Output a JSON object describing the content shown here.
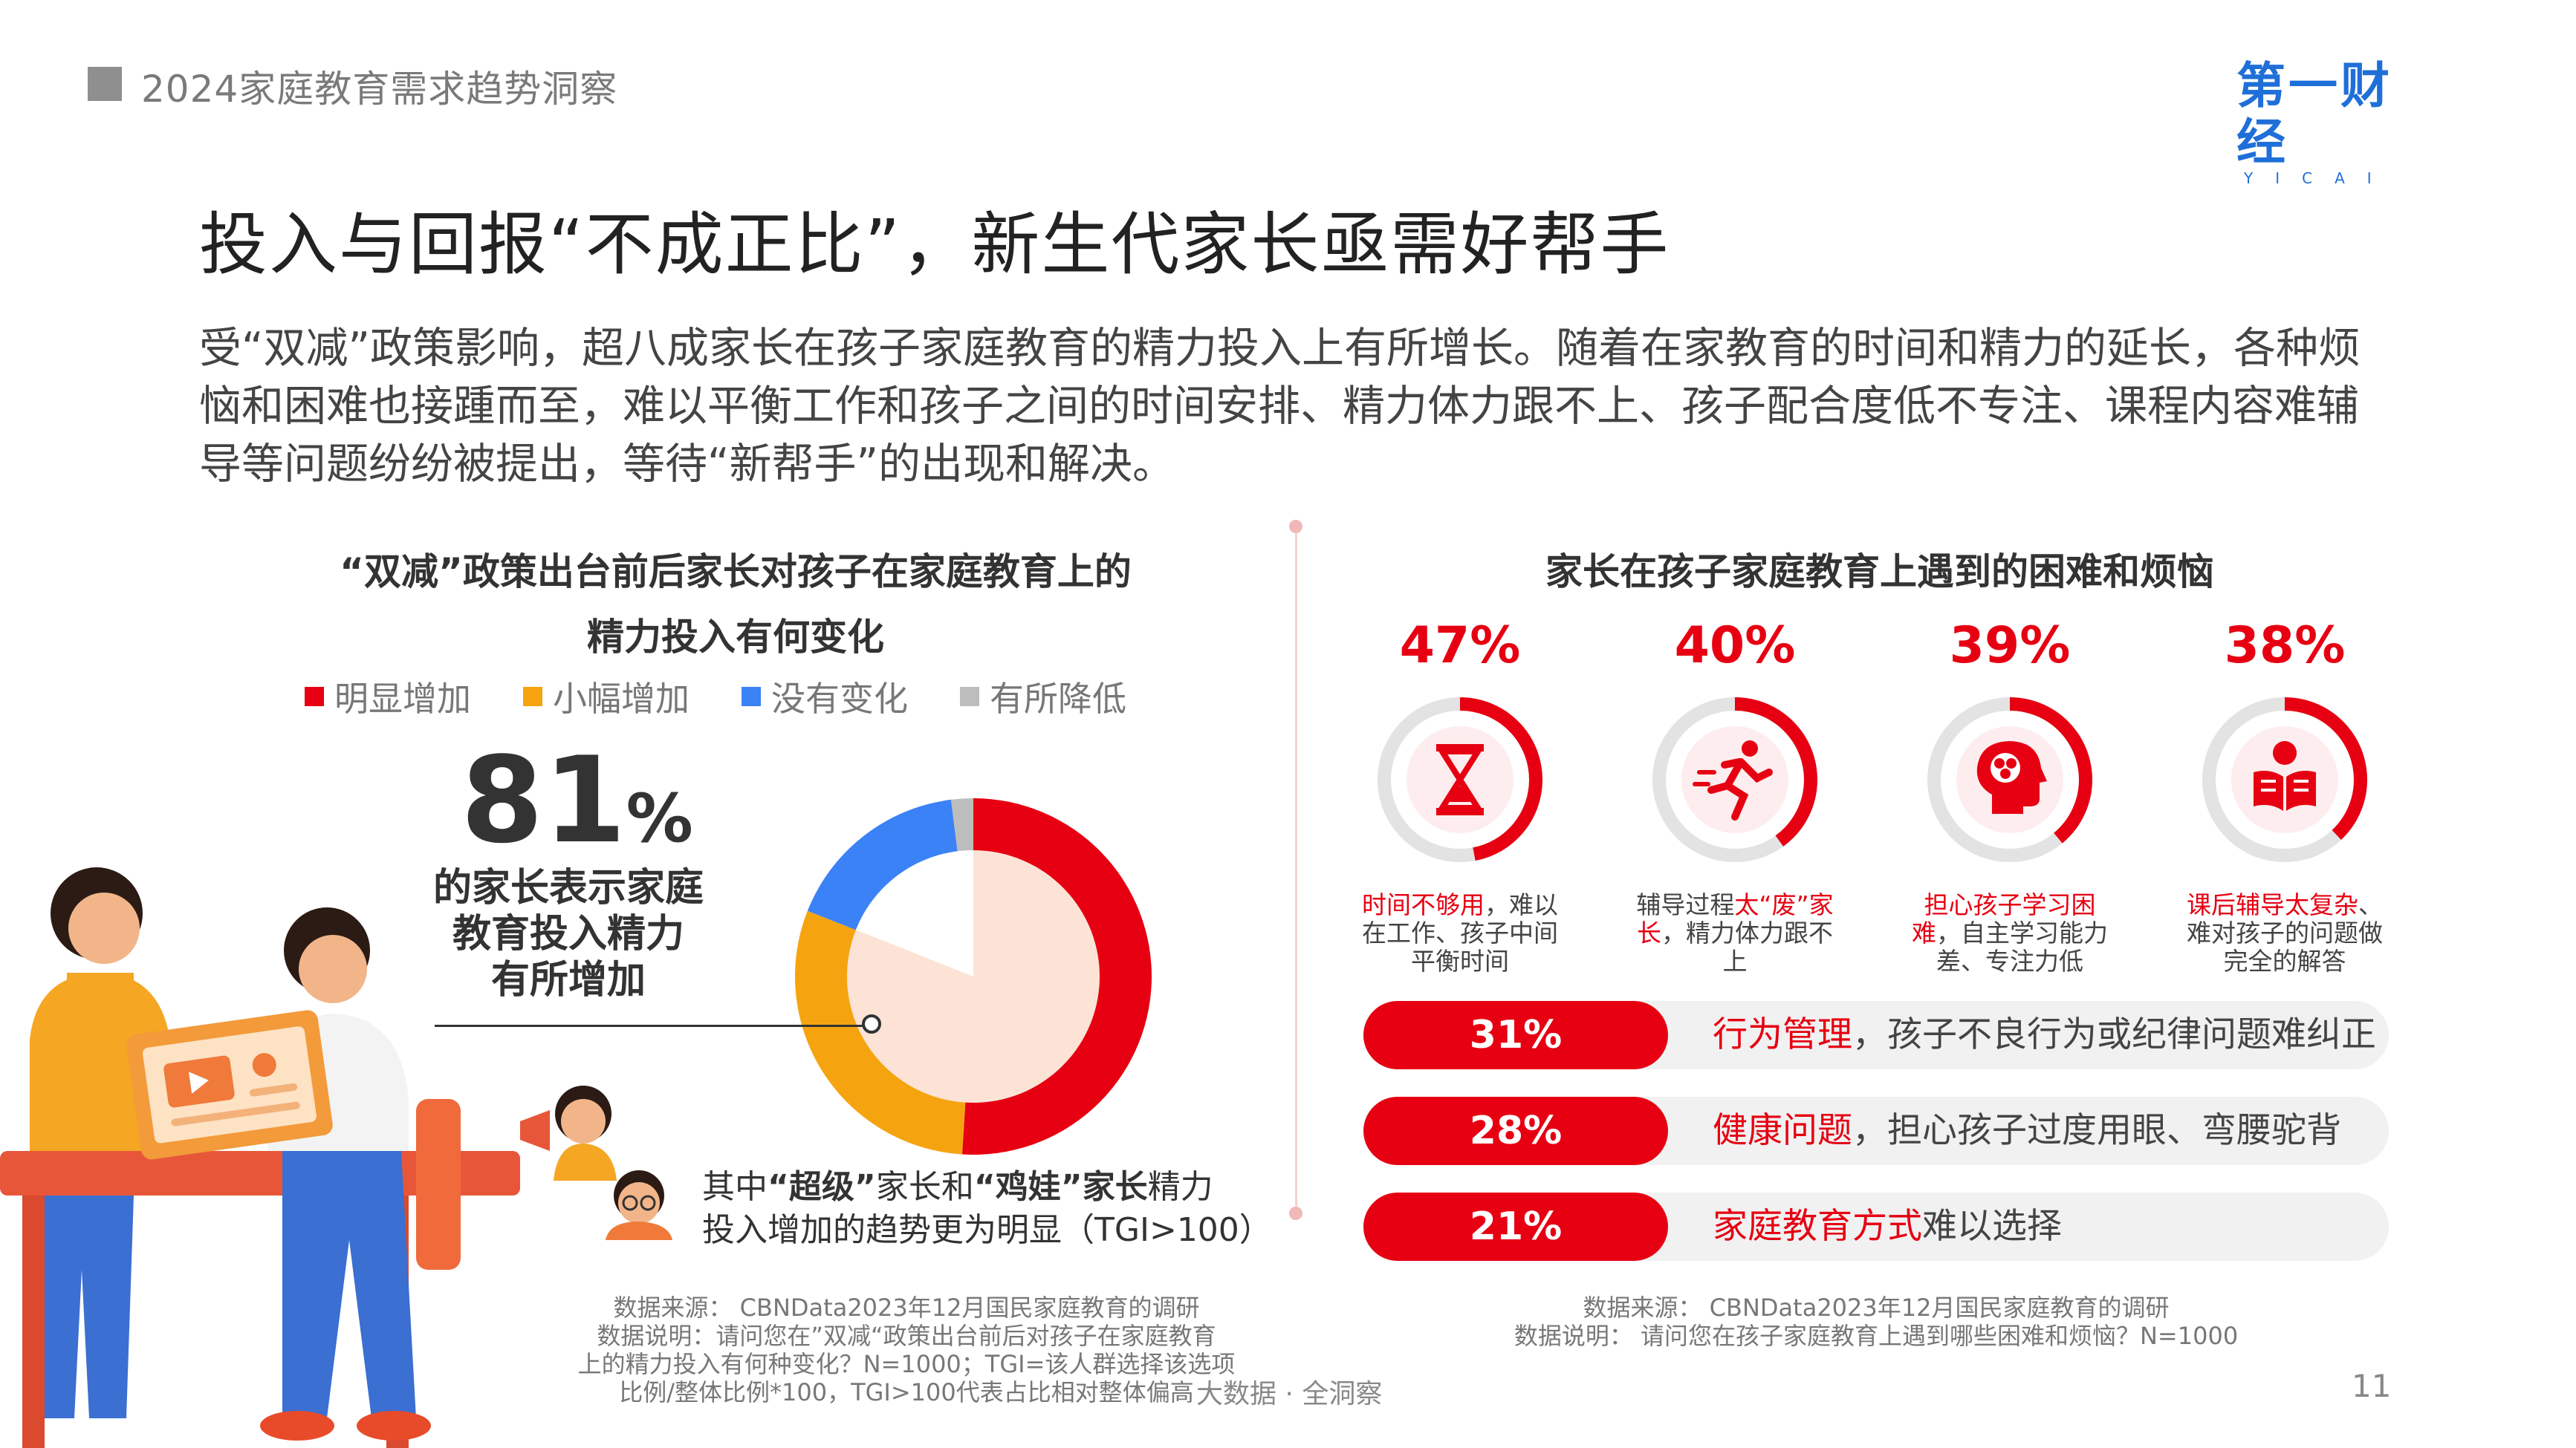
{
  "header": {
    "title": "2024家庭教育需求趋势洞察"
  },
  "logo": {
    "main": "第一财经",
    "sub": "YICAI"
  },
  "title": "投入与回报“不成正比”，新生代家长亟需好帮手",
  "intro": "受“双减”政策影响，超八成家长在孩子家庭教育的精力投入上有所增长。随着在家教育的时间和精力的延长，各种烦恼和困难也接踵而至，难以平衡工作和孩子之间的时间安排、精力体力跟不上、孩子配合度低不专注、课程内容难辅导等问题纷纷被提出，等待“新帮手”的出现和解决。",
  "left": {
    "title_line1": "“双减”政策出台前后家长对孩子在家庭教育上的",
    "title_line2": "精力投入有何变化",
    "big_number": "81",
    "big_unit": "%",
    "big_desc_line1": "的家长表示家庭",
    "big_desc_line2": "教育投入精力",
    "big_desc_line3": "有所增加",
    "note_prefix": "其中",
    "note_b1": "“超级”",
    "note_mid1": "家长和",
    "note_b2": "“鸡娃”",
    "note_mid2": "家长",
    "note_suffix": "精力",
    "note_line2": "投入增加的趋势更为明显（TGI>100）",
    "source_line1": "数据来源：  CBNData2023年12月国民家庭教育的调研",
    "source_line2": "数据说明：请问您在”双减“政策出台前后对孩子在家庭教育",
    "source_line3": "上的精力投入有何种变化？N=1000；TGI=该人群选择该选项",
    "source_line4": "比例/整体比例*100，TGI>100代表占比相对整体偏高"
  },
  "right": {
    "title": "家长在孩子家庭教育上遇到的困难和烦恼",
    "rings": [
      {
        "value": "47%",
        "icon": "hourglass-icon",
        "cap_red": "时间不够用",
        "cap_rest": "，难以在工作、孩子中间平衡时间"
      },
      {
        "value": "40%",
        "icon": "running-icon",
        "cap_pre": "辅导过程",
        "cap_red": "太“废”家长",
        "cap_rest": "，精力体力跟不上"
      },
      {
        "value": "39%",
        "icon": "brain-head-icon",
        "cap_red": "担心孩子学习困难",
        "cap_rest": "，自主学习能力差、专注力低"
      },
      {
        "value": "38%",
        "icon": "reading-icon",
        "cap_red": "课后辅导太复杂",
        "cap_rest": "、难对孩子的问题做完全的解答"
      }
    ],
    "bars": [
      {
        "value": "31%",
        "label_red": "行为管理",
        "label_rest": "，孩子不良行为或纪律问题难纠正"
      },
      {
        "value": "28%",
        "label_red": "健康问题",
        "label_rest": "，担心孩子过度用眼、弯腰驼背"
      },
      {
        "value": "21%",
        "label_red": "家庭教育方式",
        "label_rest": "难以选择"
      }
    ],
    "source_line1": "数据来源：  CBNData2023年12月国民家庭教育的调研",
    "source_line2": "数据说明：  请问您在孩子家庭教育上遇到哪些困难和烦恼？N=1000"
  },
  "footer": {
    "tag": "大数据 · 全洞察",
    "page": "11"
  },
  "colors": {
    "accent": "#e60012",
    "orange": "#f5a410",
    "blue": "#3b82f6",
    "gray": "#bdbdbd",
    "ring_track": "#e3e3e3",
    "bar_bg": "#f1f1f1"
  },
  "chart_data": [
    {
      "type": "pie",
      "legend": [
        "明显增加",
        "小幅增加",
        "没有变化",
        "有所降低"
      ],
      "colors": [
        "#e60012",
        "#f5a410",
        "#3b82f6",
        "#bdbdbd"
      ],
      "values": [
        51,
        30,
        17,
        2
      ],
      "legend_placement": "top"
    },
    {
      "type": "bar",
      "categories": [
        "时间不够用",
        "辅导过程太“废”家长",
        "担心孩子学习困难",
        "课后辅导太复杂",
        "行为管理",
        "健康问题",
        "家庭教育方式"
      ],
      "values": [
        47,
        40,
        39,
        38,
        31,
        28,
        21
      ],
      "unit": "%"
    }
  ]
}
